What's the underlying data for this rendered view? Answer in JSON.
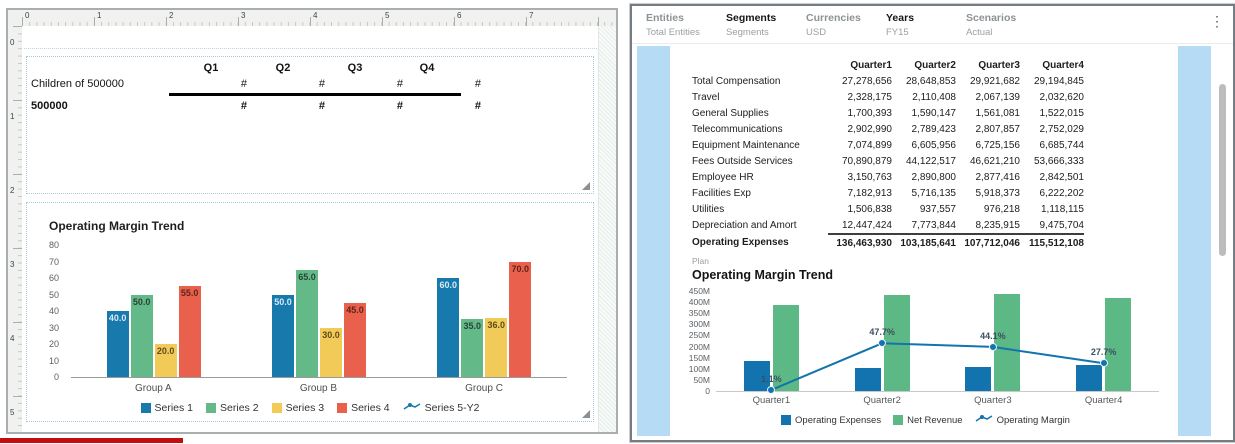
{
  "designer": {
    "ruler_h": [
      "0",
      "1",
      "2",
      "3",
      "4",
      "5",
      "6",
      "7"
    ],
    "ruler_v": [
      "0",
      "1",
      "2",
      "3",
      "4",
      "5"
    ],
    "grid": {
      "columns": [
        "Q1",
        "Q2",
        "Q3",
        "Q4"
      ],
      "rows": [
        {
          "label": "Children of 500000",
          "bold": false,
          "cells": [
            "#",
            "#",
            "#",
            "#"
          ]
        },
        {
          "label": "500000",
          "bold": true,
          "cells": [
            "#",
            "#",
            "#",
            "#"
          ]
        }
      ]
    },
    "chart": {
      "type": "bar",
      "title": "Operating Margin Trend",
      "y_ticks": [
        "80",
        "70",
        "60",
        "50",
        "40",
        "30",
        "20",
        "10",
        "0"
      ],
      "y_max": 80,
      "categories": [
        "Group A",
        "Group B",
        "Group C"
      ],
      "series": [
        {
          "name": "Series 1",
          "color": "#1879ac",
          "label_color": "#d9eaf5",
          "values": [
            40,
            50,
            60
          ]
        },
        {
          "name": "Series 2",
          "color": "#63ba88",
          "label_color": "#2b4338",
          "values": [
            50,
            65,
            35
          ]
        },
        {
          "name": "Series 3",
          "color": "#f1ca57",
          "label_color": "#5c4d1e",
          "values": [
            20,
            30,
            36
          ]
        },
        {
          "name": "Series 4",
          "color": "#e9604d",
          "label_color": "#5e241a",
          "values": [
            55,
            45,
            70
          ]
        }
      ],
      "extra_legend": {
        "name": "Series 5-Y2",
        "color": "#1879ac"
      }
    }
  },
  "preview": {
    "pov": {
      "items": [
        {
          "label": "Entities",
          "value": "Total Entities",
          "selected": false
        },
        {
          "label": "Segments",
          "value": "Segments",
          "selected": true
        },
        {
          "label": "Currencies",
          "value": "USD",
          "selected": false
        },
        {
          "label": "Years",
          "value": "FY15",
          "selected": true
        },
        {
          "label": "Scenarios",
          "value": "Actual",
          "selected": false
        }
      ],
      "menu_icon": "kebab-menu"
    },
    "table": {
      "columns": [
        "Quarter1",
        "Quarter2",
        "Quarter3",
        "Quarter4"
      ],
      "rows": [
        {
          "label": "Total Compensation",
          "values": [
            "27,278,656",
            "28,648,853",
            "29,921,682",
            "29,194,845"
          ]
        },
        {
          "label": "Travel",
          "values": [
            "2,328,175",
            "2,110,408",
            "2,067,139",
            "2,032,620"
          ]
        },
        {
          "label": "General Supplies",
          "values": [
            "1,700,393",
            "1,590,147",
            "1,561,081",
            "1,522,015"
          ]
        },
        {
          "label": "Telecommunications",
          "values": [
            "2,902,990",
            "2,789,423",
            "2,807,857",
            "2,752,029"
          ]
        },
        {
          "label": "Equipment Maintenance",
          "values": [
            "7,074,899",
            "6,605,956",
            "6,725,156",
            "6,685,744"
          ]
        },
        {
          "label": "Fees Outside Services",
          "values": [
            "70,890,879",
            "44,122,517",
            "46,621,210",
            "53,666,333"
          ]
        },
        {
          "label": "Employee HR",
          "values": [
            "3,150,763",
            "2,890,800",
            "2,877,416",
            "2,842,501"
          ]
        },
        {
          "label": "Facilities Exp",
          "values": [
            "7,182,913",
            "5,716,135",
            "5,918,373",
            "6,222,202"
          ]
        },
        {
          "label": "Utilities",
          "values": [
            "1,506,838",
            "937,557",
            "976,218",
            "1,118,115"
          ]
        },
        {
          "label": "Depreciation and Amort",
          "values": [
            "12,447,424",
            "7,773,844",
            "8,235,915",
            "9,475,704"
          ]
        },
        {
          "label": "Operating Expenses",
          "values": [
            "136,463,930",
            "103,185,641",
            "107,712,046",
            "115,512,108"
          ],
          "total": true
        }
      ]
    },
    "chart": {
      "type": "combo",
      "tag": "Plan",
      "title": "Operating Margin Trend",
      "y_ticks": [
        "450M",
        "400M",
        "350M",
        "300M",
        "250M",
        "200M",
        "150M",
        "100M",
        "50M",
        "0"
      ],
      "y_max_millions": 450,
      "categories": [
        "Quarter1",
        "Quarter2",
        "Quarter3",
        "Quarter4"
      ],
      "bar_series": [
        {
          "name": "Operating Expenses",
          "color": "#1273ae",
          "values_millions": [
            136.5,
            103.2,
            107.7,
            115.5
          ]
        },
        {
          "name": "Net Revenue",
          "color": "#5cb985",
          "values_millions": [
            386,
            430,
            437,
            420
          ]
        }
      ],
      "line_series": {
        "name": "Operating Margin",
        "color": "#1273ae",
        "values_percent": [
          1.1,
          47.7,
          44.1,
          27.7
        ],
        "labels": [
          "1.1%",
          "47.7%",
          "44.1%",
          "27.7%"
        ]
      }
    }
  }
}
